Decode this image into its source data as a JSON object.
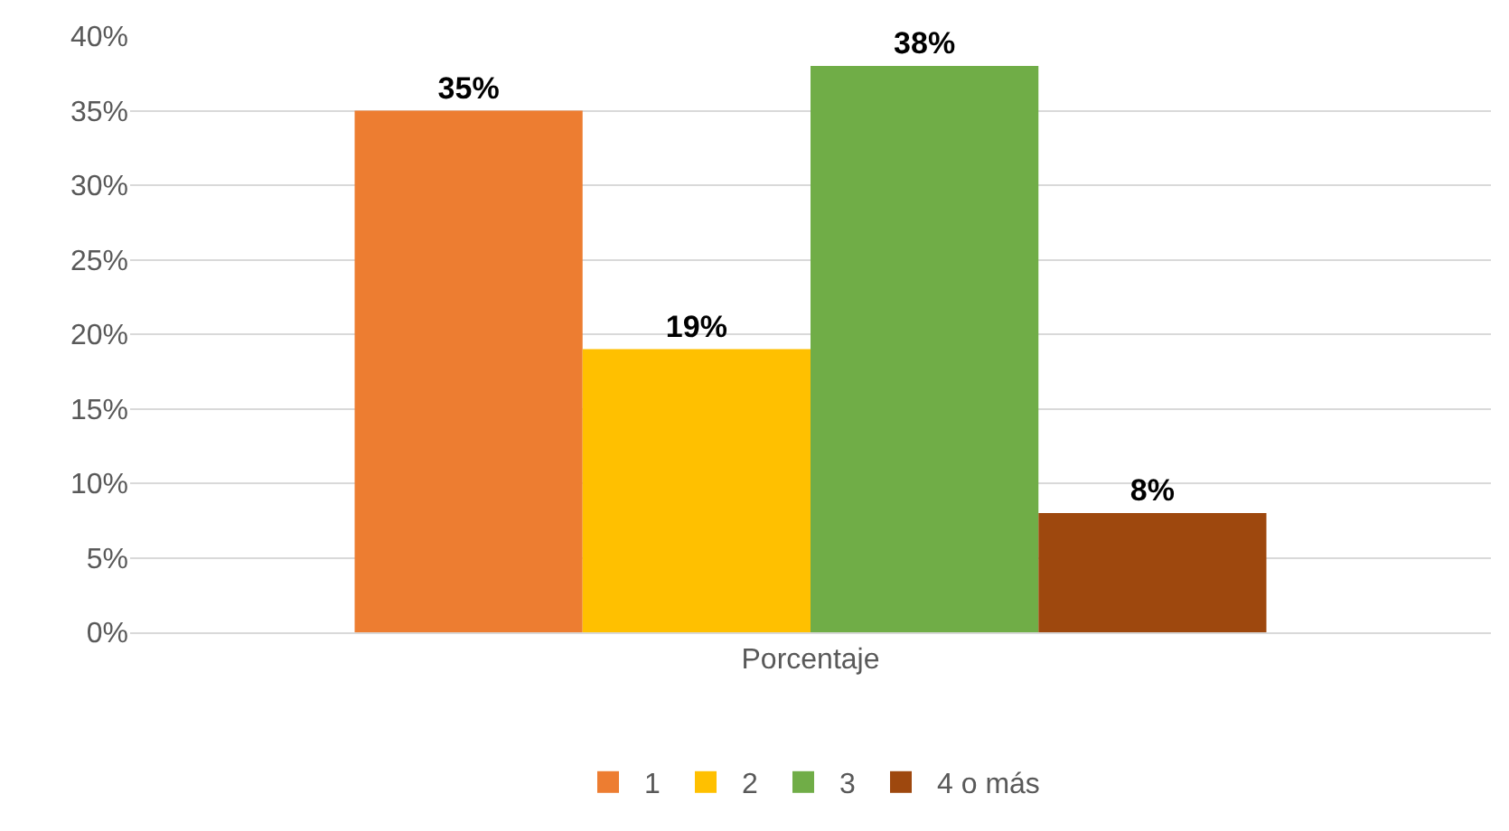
{
  "chart_data": {
    "type": "bar",
    "categories": [
      "Porcentaje"
    ],
    "series": [
      {
        "name": "1",
        "color": "#ed7d31",
        "values": [
          35
        ],
        "value_labels": [
          "35%"
        ]
      },
      {
        "name": "2",
        "color": "#ffc000",
        "values": [
          19
        ],
        "value_labels": [
          "19%"
        ]
      },
      {
        "name": "3",
        "color": "#70ad47",
        "values": [
          38
        ],
        "value_labels": [
          "38%"
        ]
      },
      {
        "name": "4 o más",
        "color": "#9e480e",
        "values": [
          8
        ],
        "value_labels": [
          "8%"
        ]
      }
    ],
    "ylim": [
      0,
      40
    ],
    "yticks": [
      {
        "value": 0,
        "label": "0%"
      },
      {
        "value": 5,
        "label": "5%"
      },
      {
        "value": 10,
        "label": "10%"
      },
      {
        "value": 15,
        "label": "15%"
      },
      {
        "value": 20,
        "label": "20%"
      },
      {
        "value": 25,
        "label": "25%"
      },
      {
        "value": 30,
        "label": "30%"
      },
      {
        "value": 35,
        "label": "35%"
      },
      {
        "value": 40,
        "label": "40%"
      }
    ],
    "grid": "y",
    "legend": "bottom"
  }
}
